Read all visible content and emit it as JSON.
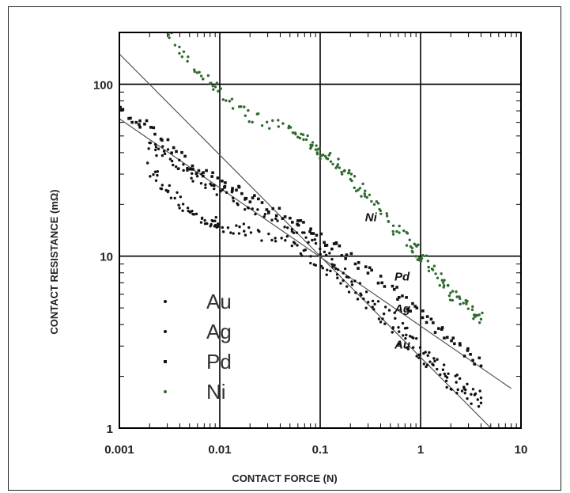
{
  "chart_data": {
    "type": "scatter",
    "title": "",
    "xlabel": "CONTACT FORCE (N)",
    "ylabel": "CONTACT RESISTANCE (mΩ)",
    "xscale": "log",
    "yscale": "log",
    "xlim": [
      0.001,
      10
    ],
    "ylim": [
      1,
      200
    ],
    "x_ticks": [
      0.001,
      0.01,
      0.1,
      1,
      10
    ],
    "x_tick_labels": [
      "0.001",
      "0.01",
      "0.1",
      "1",
      "10"
    ],
    "y_ticks": [
      1,
      10,
      100
    ],
    "y_tick_labels": [
      "1",
      "10",
      "100"
    ],
    "grid": true,
    "legend_position": "lower-left",
    "series": [
      {
        "name": "Au",
        "color": "#111111",
        "marker": "dot",
        "curve_label": "Au",
        "points": [
          [
            0.002,
            33
          ],
          [
            0.003,
            24
          ],
          [
            0.005,
            18
          ],
          [
            0.008,
            16
          ],
          [
            0.01,
            15
          ],
          [
            0.02,
            14
          ],
          [
            0.05,
            12
          ],
          [
            0.1,
            9
          ],
          [
            0.2,
            6.5
          ],
          [
            0.5,
            3.8
          ],
          [
            1,
            2.6
          ],
          [
            2,
            1.8
          ],
          [
            4,
            1.4
          ]
        ]
      },
      {
        "name": "Ag",
        "color": "#111111",
        "marker": "dot",
        "curve_label": "Ag",
        "points": [
          [
            0.002,
            45
          ],
          [
            0.003,
            38
          ],
          [
            0.005,
            30
          ],
          [
            0.01,
            24
          ],
          [
            0.02,
            19
          ],
          [
            0.05,
            15
          ],
          [
            0.1,
            11
          ],
          [
            0.2,
            7.5
          ],
          [
            0.5,
            4.5
          ],
          [
            1,
            3
          ],
          [
            2,
            2
          ],
          [
            4,
            1.5
          ]
        ]
      },
      {
        "name": "Pd",
        "color": "#111111",
        "marker": "square",
        "curve_label": "Pd",
        "points": [
          [
            0.001,
            70
          ],
          [
            0.002,
            55
          ],
          [
            0.005,
            33
          ],
          [
            0.01,
            27
          ],
          [
            0.02,
            22
          ],
          [
            0.05,
            17
          ],
          [
            0.1,
            13
          ],
          [
            0.2,
            10
          ],
          [
            0.5,
            6.5
          ],
          [
            1,
            4.6
          ],
          [
            2,
            3.3
          ],
          [
            4,
            2.3
          ]
        ]
      },
      {
        "name": "Ni",
        "color": "#2f6b2f",
        "marker": "dot",
        "curve_label": "Ni",
        "points": [
          [
            0.003,
            200
          ],
          [
            0.006,
            120
          ],
          [
            0.01,
            90
          ],
          [
            0.02,
            65
          ],
          [
            0.05,
            55
          ],
          [
            0.08,
            45
          ],
          [
            0.1,
            40
          ],
          [
            0.15,
            35
          ],
          [
            0.2,
            28
          ],
          [
            0.3,
            22
          ],
          [
            0.5,
            15
          ],
          [
            0.8,
            12
          ],
          [
            1,
            10
          ],
          [
            1.5,
            7.5
          ],
          [
            2,
            6
          ],
          [
            3,
            5
          ],
          [
            4,
            4.3
          ]
        ]
      }
    ],
    "fit_lines": [
      {
        "from": [
          0.001,
          150
        ],
        "to": [
          6,
          0.9
        ]
      },
      {
        "from": [
          0.001,
          63
        ],
        "to": [
          8,
          1.7
        ]
      }
    ]
  }
}
